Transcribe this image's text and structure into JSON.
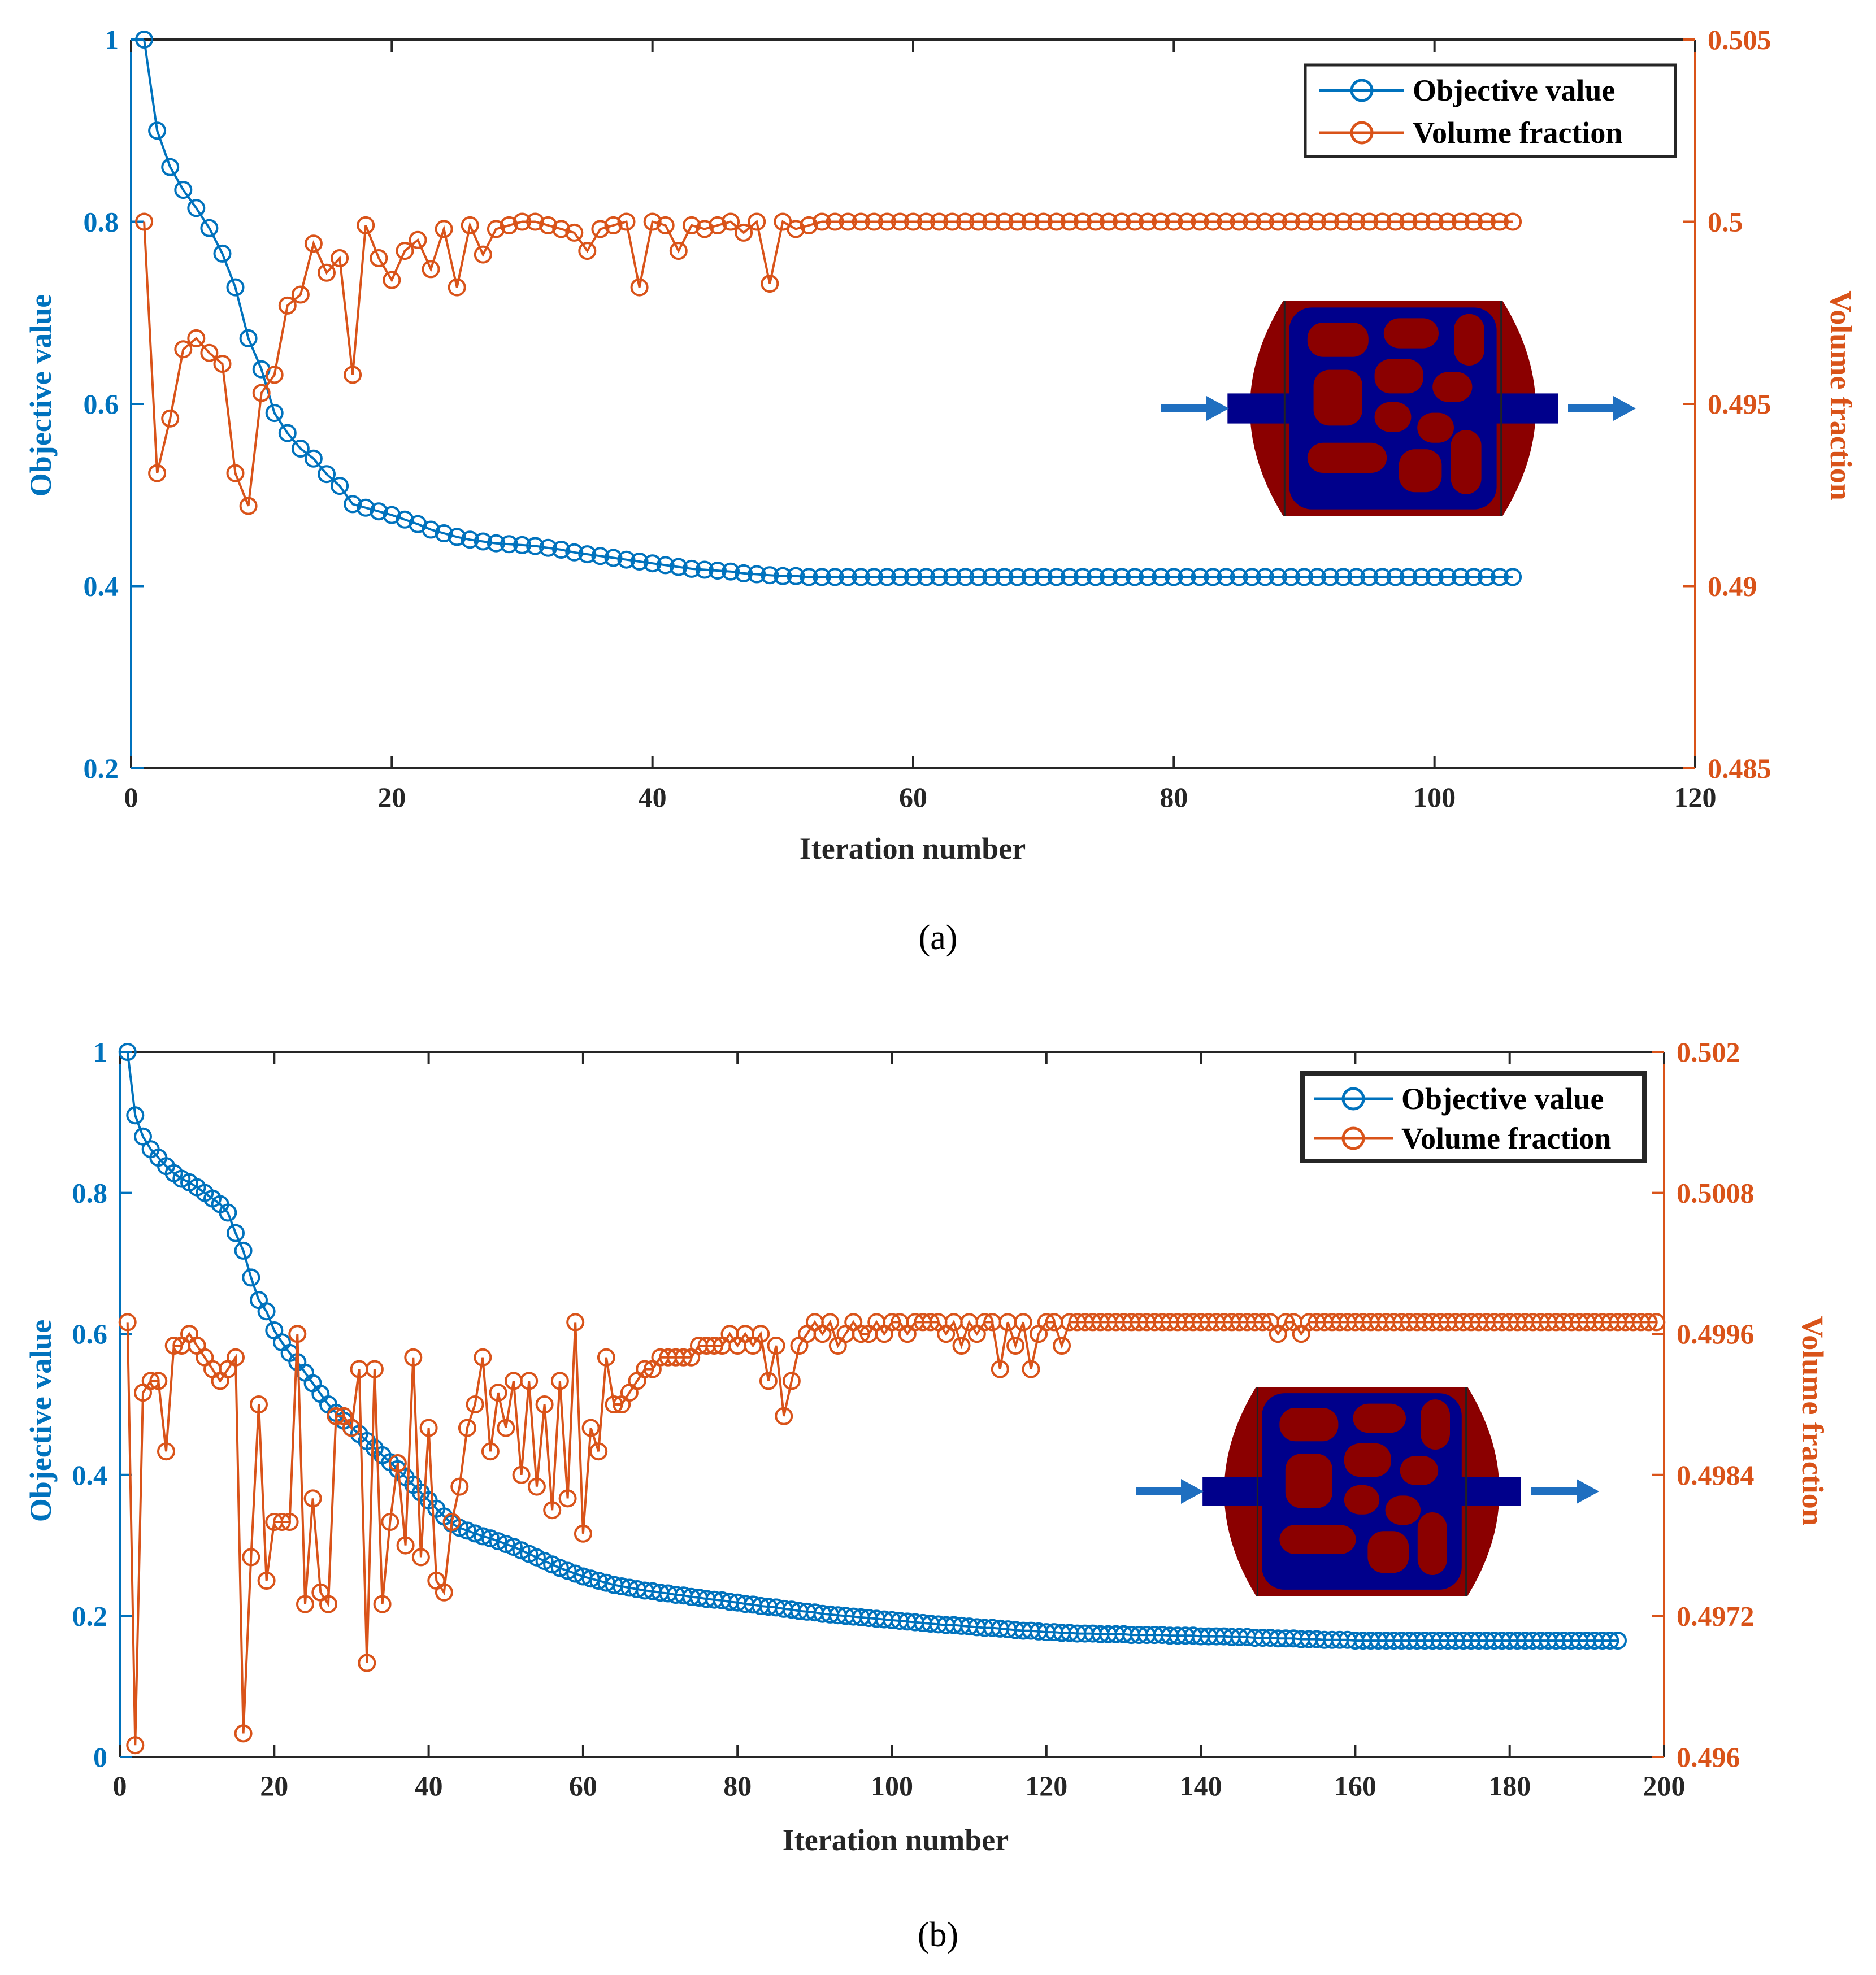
{
  "colors": {
    "objective": "#0072BD",
    "volume": "#D95319",
    "axis_black": "#262626",
    "inset_solid": "#8B0000",
    "inset_fluid": "#00008B",
    "arrow": "#1F6FC0"
  },
  "chart_data": [
    {
      "panel": "(a)",
      "type": "line",
      "xlabel": "Iteration number",
      "ylabel_left": "Objective value",
      "ylabel_right": "Volume fraction",
      "xlim": [
        0,
        120
      ],
      "xticks": [
        0,
        20,
        40,
        60,
        80,
        100,
        120
      ],
      "ylim_left": [
        0.2,
        1
      ],
      "yticks_left": [
        0.2,
        0.4,
        0.6,
        0.8,
        1
      ],
      "yticklabels_left": [
        "0.2",
        "0.4",
        "0.6",
        "0.8",
        "1"
      ],
      "ylim_right": [
        0.485,
        0.505
      ],
      "yticks_right": [
        0.485,
        0.49,
        0.495,
        0.5,
        0.505
      ],
      "yticklabels_right": [
        "0.485",
        "0.49",
        "0.495",
        "0.5",
        "0.505"
      ],
      "legend": {
        "position": "top-right",
        "entries": [
          "Objective value",
          "Volume fraction"
        ]
      },
      "inset": "optimized channel layout (top-right, inlet/outlet arrows)",
      "series": [
        {
          "name": "Objective value",
          "axis": "left",
          "x_start": 1,
          "values": [
            1.0,
            0.9,
            0.86,
            0.835,
            0.815,
            0.793,
            0.765,
            0.728,
            0.672,
            0.638,
            0.59,
            0.568,
            0.551,
            0.54,
            0.523,
            0.51,
            0.49,
            0.486,
            0.482,
            0.478,
            0.473,
            0.468,
            0.462,
            0.458,
            0.454,
            0.451,
            0.449,
            0.447,
            0.446,
            0.445,
            0.444,
            0.442,
            0.44,
            0.437,
            0.435,
            0.433,
            0.431,
            0.429,
            0.427,
            0.425,
            0.423,
            0.421,
            0.419,
            0.418,
            0.417,
            0.416,
            0.414,
            0.413,
            0.412,
            0.411,
            0.411,
            0.41,
            0.41,
            0.41,
            0.41,
            0.41,
            0.41,
            0.41,
            0.41,
            0.41,
            0.41,
            0.41,
            0.41,
            0.41,
            0.41,
            0.41,
            0.41,
            0.41,
            0.41,
            0.41,
            0.41,
            0.41,
            0.41,
            0.41,
            0.41,
            0.41,
            0.41,
            0.41,
            0.41,
            0.41,
            0.41,
            0.41,
            0.41,
            0.41,
            0.41,
            0.41,
            0.41,
            0.41,
            0.41,
            0.41,
            0.41,
            0.41,
            0.41,
            0.41,
            0.41,
            0.41,
            0.41,
            0.41,
            0.41,
            0.41,
            0.41,
            0.41,
            0.41,
            0.41,
            0.41,
            0.41
          ]
        },
        {
          "name": "Volume fraction",
          "axis": "right",
          "x_start": 1,
          "values": [
            0.5,
            0.4931,
            0.4946,
            0.4965,
            0.4968,
            0.4964,
            0.4961,
            0.4931,
            0.4922,
            0.4953,
            0.4958,
            0.4977,
            0.498,
            0.4994,
            0.4986,
            0.499,
            0.4958,
            0.4999,
            0.499,
            0.4984,
            0.4992,
            0.4995,
            0.4987,
            0.4998,
            0.4982,
            0.4999,
            0.4991,
            0.4998,
            0.4999,
            0.5,
            0.5,
            0.4999,
            0.4998,
            0.4997,
            0.4992,
            0.4998,
            0.4999,
            0.5,
            0.4982,
            0.5,
            0.4999,
            0.4992,
            0.4999,
            0.4998,
            0.4999,
            0.5,
            0.4997,
            0.5,
            0.4983,
            0.5,
            0.4998,
            0.4999,
            0.5,
            0.5,
            0.5,
            0.5,
            0.5,
            0.5,
            0.5,
            0.5,
            0.5,
            0.5,
            0.5,
            0.5,
            0.5,
            0.5,
            0.5,
            0.5,
            0.5,
            0.5,
            0.5,
            0.5,
            0.5,
            0.5,
            0.5,
            0.5,
            0.5,
            0.5,
            0.5,
            0.5,
            0.5,
            0.5,
            0.5,
            0.5,
            0.5,
            0.5,
            0.5,
            0.5,
            0.5,
            0.5,
            0.5,
            0.5,
            0.5,
            0.5,
            0.5,
            0.5,
            0.5,
            0.5,
            0.5,
            0.5,
            0.5,
            0.5,
            0.5,
            0.5,
            0.5,
            0.5
          ]
        }
      ]
    },
    {
      "panel": "(b)",
      "type": "line",
      "xlabel": "Iteration number",
      "ylabel_left": "Objective value",
      "ylabel_right": "Volume fraction",
      "xlim": [
        0,
        200
      ],
      "xticks": [
        0,
        20,
        40,
        60,
        80,
        100,
        120,
        140,
        160,
        180,
        200
      ],
      "ylim_left": [
        0,
        1
      ],
      "yticks_left": [
        0,
        0.2,
        0.4,
        0.6,
        0.8,
        1
      ],
      "yticklabels_left": [
        "0",
        "0.2",
        "0.4",
        "0.6",
        "0.8",
        "1"
      ],
      "ylim_right": [
        0.496,
        0.502
      ],
      "yticks_right": [
        0.496,
        0.4972,
        0.4984,
        0.4996,
        0.5008,
        0.502
      ],
      "yticklabels_right": [
        "0.496",
        "0.4972",
        "0.4984",
        "0.4996",
        "0.5008",
        "0.502"
      ],
      "legend": {
        "position": "top-right",
        "entries": [
          "Objective value",
          "Volume fraction"
        ]
      },
      "inset": "optimized channel layout (right side, inlet/outlet arrows)",
      "series": [
        {
          "name": "Objective value",
          "axis": "left",
          "x_start": 1,
          "values": [
            1.0,
            0.91,
            0.88,
            0.862,
            0.85,
            0.838,
            0.828,
            0.82,
            0.815,
            0.808,
            0.8,
            0.792,
            0.784,
            0.772,
            0.743,
            0.718,
            0.68,
            0.648,
            0.632,
            0.605,
            0.588,
            0.573,
            0.56,
            0.545,
            0.53,
            0.515,
            0.5,
            0.488,
            0.477,
            0.467,
            0.458,
            0.448,
            0.438,
            0.428,
            0.418,
            0.408,
            0.397,
            0.386,
            0.375,
            0.364,
            0.352,
            0.341,
            0.331,
            0.325,
            0.321,
            0.317,
            0.313,
            0.31,
            0.306,
            0.302,
            0.298,
            0.293,
            0.288,
            0.283,
            0.278,
            0.273,
            0.268,
            0.264,
            0.26,
            0.256,
            0.253,
            0.25,
            0.247,
            0.244,
            0.242,
            0.24,
            0.238,
            0.236,
            0.235,
            0.233,
            0.232,
            0.23,
            0.229,
            0.227,
            0.226,
            0.224,
            0.223,
            0.222,
            0.22,
            0.219,
            0.217,
            0.216,
            0.214,
            0.213,
            0.212,
            0.21,
            0.209,
            0.207,
            0.206,
            0.205,
            0.203,
            0.202,
            0.201,
            0.2,
            0.199,
            0.198,
            0.197,
            0.196,
            0.195,
            0.194,
            0.193,
            0.192,
            0.191,
            0.19,
            0.189,
            0.188,
            0.187,
            0.187,
            0.186,
            0.185,
            0.184,
            0.183,
            0.183,
            0.182,
            0.181,
            0.18,
            0.179,
            0.179,
            0.178,
            0.177,
            0.177,
            0.176,
            0.176,
            0.175,
            0.175,
            0.175,
            0.174,
            0.174,
            0.174,
            0.174,
            0.173,
            0.173,
            0.173,
            0.173,
            0.173,
            0.172,
            0.172,
            0.172,
            0.172,
            0.171,
            0.171,
            0.171,
            0.171,
            0.17,
            0.17,
            0.17,
            0.169,
            0.169,
            0.169,
            0.168,
            0.168,
            0.168,
            0.167,
            0.167,
            0.167,
            0.166,
            0.166,
            0.166,
            0.166,
            0.165,
            0.165,
            0.165,
            0.165,
            0.165,
            0.165,
            0.165,
            0.165,
            0.165,
            0.165,
            0.165,
            0.165,
            0.165,
            0.165,
            0.165,
            0.165,
            0.165,
            0.165,
            0.165,
            0.165,
            0.165,
            0.165,
            0.165,
            0.165,
            0.165,
            0.165,
            0.165,
            0.165,
            0.165,
            0.165,
            0.165,
            0.165,
            0.165,
            0.165,
            0.165
          ]
        },
        {
          "name": "Volume fraction",
          "axis": "right",
          "x_start": 1,
          "values": [
            0.4997,
            0.4961,
            0.4991,
            0.4992,
            0.4992,
            0.4986,
            0.4995,
            0.4995,
            0.4996,
            0.4995,
            0.4994,
            0.4993,
            0.4992,
            0.4993,
            0.4994,
            0.4962,
            0.4977,
            0.499,
            0.4975,
            0.498,
            0.498,
            0.498,
            0.4996,
            0.4973,
            0.4982,
            0.4974,
            0.4973,
            0.4989,
            0.4989,
            0.4988,
            0.4993,
            0.4968,
            0.4993,
            0.4973,
            0.498,
            0.4985,
            0.4978,
            0.4994,
            0.4977,
            0.4988,
            0.4975,
            0.4974,
            0.498,
            0.4983,
            0.4988,
            0.499,
            0.4994,
            0.4986,
            0.4991,
            0.4988,
            0.4992,
            0.4984,
            0.4992,
            0.4983,
            0.499,
            0.4981,
            0.4992,
            0.4982,
            0.4997,
            0.4979,
            0.4988,
            0.4986,
            0.4994,
            0.499,
            0.499,
            0.4991,
            0.4992,
            0.4993,
            0.4993,
            0.4994,
            0.4994,
            0.4994,
            0.4994,
            0.4994,
            0.4995,
            0.4995,
            0.4995,
            0.4995,
            0.4996,
            0.4995,
            0.4996,
            0.4995,
            0.4996,
            0.4992,
            0.4995,
            0.4989,
            0.4992,
            0.4995,
            0.4996,
            0.4997,
            0.4996,
            0.4997,
            0.4995,
            0.4996,
            0.4997,
            0.4996,
            0.4996,
            0.4997,
            0.4996,
            0.4997,
            0.4997,
            0.4996,
            0.4997,
            0.4997,
            0.4997,
            0.4997,
            0.4996,
            0.4997,
            0.4995,
            0.4997,
            0.4996,
            0.4997,
            0.4997,
            0.4993,
            0.4997,
            0.4995,
            0.4997,
            0.4993,
            0.4996,
            0.4997,
            0.4997,
            0.4995,
            0.4997,
            0.4997,
            0.4997,
            0.4997,
            0.4997,
            0.4997,
            0.4997,
            0.4997,
            0.4997,
            0.4997,
            0.4997,
            0.4997,
            0.4997,
            0.4997,
            0.4997,
            0.4997,
            0.4997,
            0.4997,
            0.4997,
            0.4997,
            0.4997,
            0.4997,
            0.4997,
            0.4997,
            0.4997,
            0.4997,
            0.4997,
            0.4996,
            0.4997,
            0.4997,
            0.4996,
            0.4997,
            0.4997,
            0.4997,
            0.4997,
            0.4997,
            0.4997,
            0.4997,
            0.4997,
            0.4997,
            0.4997,
            0.4997,
            0.4997,
            0.4997,
            0.4997,
            0.4997,
            0.4997,
            0.4997,
            0.4997,
            0.4997,
            0.4997,
            0.4997,
            0.4997,
            0.4997,
            0.4997,
            0.4997,
            0.4997,
            0.4997,
            0.4997,
            0.4997,
            0.4997,
            0.4997,
            0.4997,
            0.4997,
            0.4997,
            0.4997,
            0.4997,
            0.4997,
            0.4997,
            0.4997,
            0.4997,
            0.4997,
            0.4997,
            0.4997,
            0.4997,
            0.4997,
            0.4997
          ]
        }
      ]
    }
  ],
  "captions": {
    "a": "(a)",
    "b": "(b)"
  }
}
